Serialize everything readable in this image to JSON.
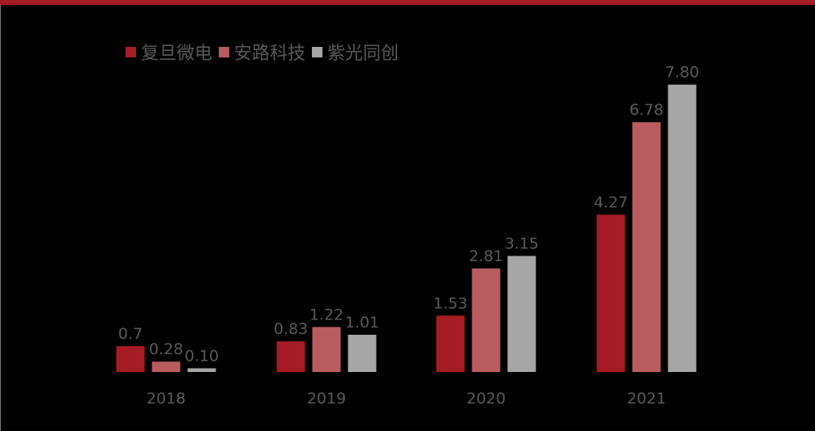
{
  "chart_data": {
    "type": "bar",
    "categories": [
      "2018",
      "2019",
      "2020",
      "2021"
    ],
    "series": [
      {
        "name": "复旦微电",
        "color": "#a61c24",
        "values": [
          0.7,
          0.83,
          1.53,
          4.27
        ],
        "labels": [
          "0.7",
          "0.83",
          "1.53",
          "4.27"
        ]
      },
      {
        "name": "安路科技",
        "color": "#b85c60",
        "values": [
          0.28,
          1.22,
          2.81,
          6.78
        ],
        "labels": [
          "0.28",
          "1.22",
          "2.81",
          "6.78"
        ]
      },
      {
        "name": "紫光同创",
        "color": "#a6a6a6",
        "values": [
          0.1,
          1.01,
          3.15,
          7.8
        ],
        "labels": [
          "0.10",
          "1.01",
          "3.15",
          "7.80"
        ]
      }
    ],
    "ylim": [
      0,
      9
    ],
    "grid": false,
    "legend": "top-left",
    "accent": "#a61c24"
  }
}
